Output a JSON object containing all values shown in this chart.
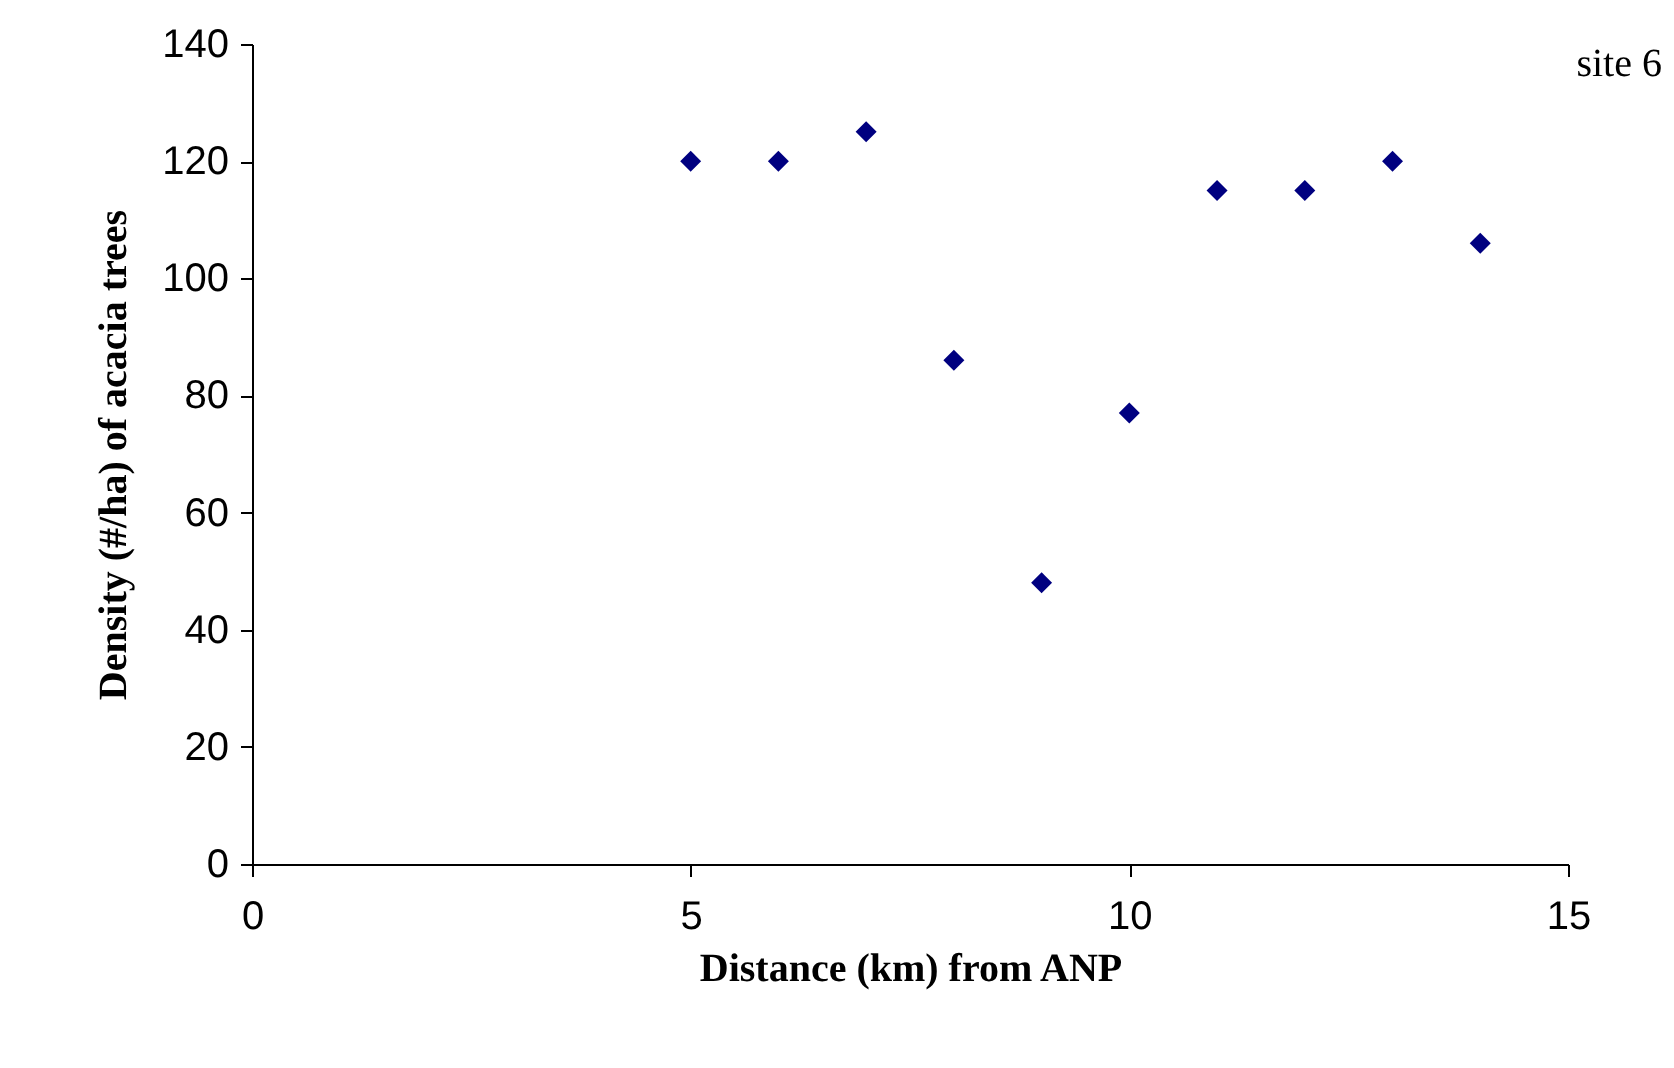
{
  "chart_data": {
    "type": "scatter",
    "xlabel": "Distance (km) from ANP",
    "ylabel": "Density (#/ha) of acacia trees",
    "annotations": [
      "site 6"
    ],
    "x": [
      5,
      6,
      7,
      8,
      9,
      10,
      11,
      12,
      13,
      14
    ],
    "series": [
      {
        "color": "#000080",
        "values": [
          120,
          120,
          125,
          86,
          48,
          77,
          115,
          115,
          120,
          106
        ]
      }
    ],
    "xlim": [
      0,
      15
    ],
    "xticks": [
      0,
      5,
      10,
      15
    ],
    "ylim": [
      0,
      140
    ],
    "yticks": [
      0,
      20,
      40,
      60,
      80,
      100,
      120,
      140
    ],
    "grid": false,
    "legend": false,
    "marker": "diamond"
  }
}
